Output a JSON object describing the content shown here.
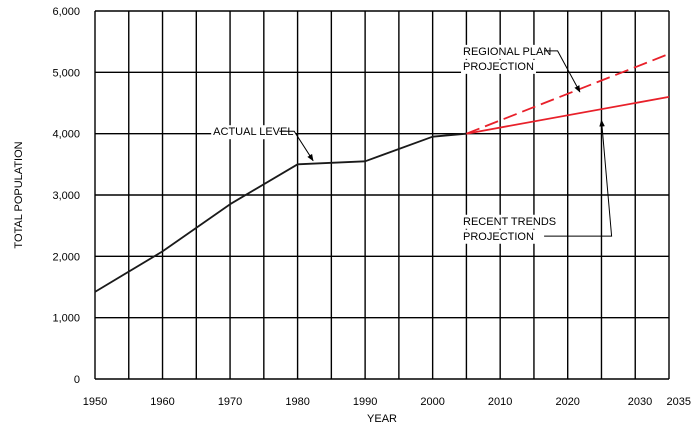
{
  "chart_data": {
    "type": "line",
    "title": "",
    "xlabel": "YEAR",
    "ylabel": "TOTAL POPULATION",
    "xlim": [
      1950,
      2035
    ],
    "ylim": [
      0,
      6000
    ],
    "x_gridlines": [
      1950,
      1955,
      1960,
      1965,
      1970,
      1975,
      1980,
      1985,
      1990,
      1995,
      2000,
      2005,
      2010,
      2015,
      2020,
      2025,
      2030,
      2035
    ],
    "x_tick_labels": [
      {
        "x": 1950,
        "label": "1950"
      },
      {
        "x": 1960,
        "label": "1960"
      },
      {
        "x": 1970,
        "label": "1970"
      },
      {
        "x": 1980,
        "label": "1980"
      },
      {
        "x": 1990,
        "label": "1990"
      },
      {
        "x": 2000,
        "label": "2000"
      },
      {
        "x": 2010,
        "label": "2010"
      },
      {
        "x": 2020,
        "label": "2020"
      },
      {
        "x": 2030,
        "label": "2030"
      },
      {
        "x": 2035,
        "label": "2035"
      }
    ],
    "y_tick_labels": [
      {
        "y": 0,
        "label": "0"
      },
      {
        "y": 1000,
        "label": "1,000"
      },
      {
        "y": 2000,
        "label": "2,000"
      },
      {
        "y": 3000,
        "label": "3,000"
      },
      {
        "y": 4000,
        "label": "4,000"
      },
      {
        "y": 5000,
        "label": "5,000"
      },
      {
        "y": 6000,
        "label": "6,000"
      }
    ],
    "grid": true,
    "series": [
      {
        "key": "actual",
        "color": "#1a1a1a",
        "dash": "solid",
        "points": [
          {
            "x": 1950,
            "y": 1420
          },
          {
            "x": 1960,
            "y": 2080
          },
          {
            "x": 1970,
            "y": 2850
          },
          {
            "x": 1980,
            "y": 3500
          },
          {
            "x": 1990,
            "y": 3550
          },
          {
            "x": 2000,
            "y": 3950
          },
          {
            "x": 2005,
            "y": 4000
          }
        ]
      },
      {
        "key": "regional_plan",
        "color": "#e8202a",
        "dash": "dashed",
        "points": [
          {
            "x": 2005,
            "y": 4000
          },
          {
            "x": 2035,
            "y": 5300
          }
        ]
      },
      {
        "key": "recent_trends",
        "color": "#e8202a",
        "dash": "solid",
        "points": [
          {
            "x": 2005,
            "y": 4000
          },
          {
            "x": 2035,
            "y": 4600
          }
        ]
      }
    ],
    "annotations": [
      {
        "key": "actual_level",
        "lines": [
          "ACTUAL LEVEL"
        ],
        "text_pos": {
          "x": 1967.5,
          "y": 4040
        },
        "leader": [
          {
            "x": 1977.3,
            "y": 4040
          },
          {
            "x": 1979.5,
            "y": 4040
          },
          {
            "x": 1982.3,
            "y": 3560
          }
        ]
      },
      {
        "key": "regional_plan_label",
        "lines": [
          "REGIONAL PLAN",
          "PROJECTION"
        ],
        "text_pos": {
          "x": 2004.5,
          "y": 5350
        },
        "leader": [
          {
            "x": 2016.5,
            "y": 5350
          },
          {
            "x": 2018.5,
            "y": 5350
          },
          {
            "x": 2021.8,
            "y": 4680
          }
        ]
      },
      {
        "key": "recent_trends_label",
        "lines": [
          "RECENT TRENDS",
          "PROJECTION"
        ],
        "text_pos": {
          "x": 2004.5,
          "y": 2580
        },
        "leader": [
          {
            "x": 2016.5,
            "y": 2330
          },
          {
            "x": 2026.5,
            "y": 2330
          },
          {
            "x": 2025.0,
            "y": 4220
          }
        ]
      }
    ]
  }
}
